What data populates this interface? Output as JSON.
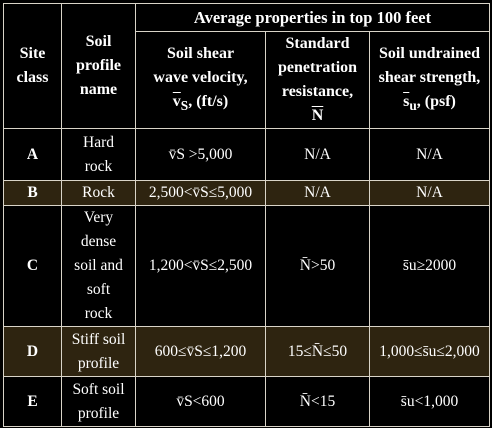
{
  "header": {
    "site_class": "Site class",
    "soil_profile_name": "Soil profile name",
    "avg_properties": "Average properties in top 100 feet",
    "shear_wave": {
      "line1": "Soil shear",
      "line2": "wave velocity,",
      "symbol": "v",
      "symbol_sub": "S",
      "unit": ", (ft/s)"
    },
    "spt": {
      "line1": "Standard",
      "line2": "penetration",
      "line3": "resistance,",
      "symbol": "N"
    },
    "undrained": {
      "line1": "Soil undrained",
      "line2": "shear strength,",
      "symbol": "s",
      "symbol_sub": "u",
      "unit": ", (psf)"
    }
  },
  "rows": [
    {
      "site_class": "A",
      "name_lines": [
        "Hard",
        "rock"
      ],
      "vs": "v̄S >5,000",
      "n": "N/A",
      "su": "N/A"
    },
    {
      "site_class": "B",
      "name_lines": [
        "Rock"
      ],
      "vs": "2,500<v̄S≤5,000",
      "n": "N/A",
      "su": "N/A"
    },
    {
      "site_class": "C",
      "name_lines": [
        "Very",
        "dense",
        "soil and",
        "soft",
        "rock"
      ],
      "vs": "1,200<v̄S≤2,500",
      "n": "N̄>50",
      "su": "s̄u≥2000"
    },
    {
      "site_class": "D",
      "name_lines": [
        "Stiff soil",
        "profile"
      ],
      "vs": "600≤v̄S≤1,200",
      "n": "15≤N̄≤50",
      "su": "1,000≤s̄u≤2,000"
    },
    {
      "site_class": "E",
      "name_lines": [
        "Soft soil",
        "profile"
      ],
      "vs": "v̄S<600",
      "n": "N̄<15",
      "su": "s̄u<1,000"
    }
  ],
  "colors": {
    "background": "#000000",
    "alt_row": "#2e2410",
    "border": "#d9d4c8",
    "text": "#ffffff"
  }
}
